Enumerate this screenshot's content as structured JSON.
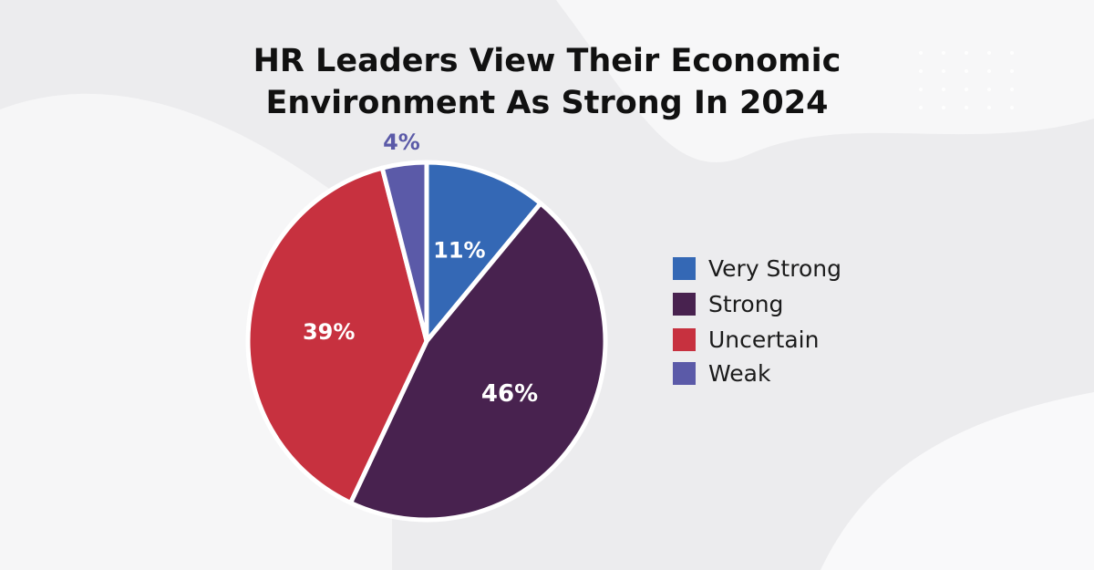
{
  "chart_data": {
    "type": "pie",
    "title": [
      "HR Leaders View Their Economic",
      "Environment As Strong In 2024"
    ],
    "slices": [
      {
        "label": "Very Strong",
        "value": 11,
        "display": "11%",
        "color": "#3468b5"
      },
      {
        "label": "Strong",
        "value": 46,
        "display": "46%",
        "color": "#48224f"
      },
      {
        "label": "Uncertain",
        "value": 39,
        "display": "39%",
        "color": "#c7313f"
      },
      {
        "label": "Weak",
        "value": 4,
        "display": "4%",
        "color": "#5b5aa8"
      }
    ],
    "legend_position": "right"
  }
}
